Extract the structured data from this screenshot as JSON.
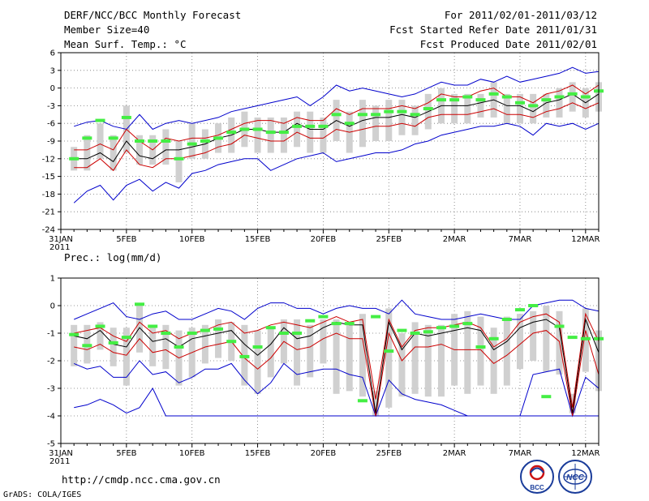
{
  "header": {
    "title": "DERF/NCC/BCC Monthly Forecast",
    "member_size": "Member Size=40",
    "panel1_label": "Mean Surf. Temp.: °C",
    "period": "For 2011/02/01-2011/03/12",
    "start_date": "Fcst Started Refer Date 2011/01/31",
    "produced_date": "Fcst Produced Date 2011/02/01"
  },
  "panel2_label": "Prec.: log(mm/d)",
  "footer": {
    "url": "http://cmdp.ncc.cma.gov.cn",
    "credit": "GrADS: COLA/IGES",
    "logo1_text": "BCC",
    "logo2_text": "NCC"
  },
  "colors": {
    "envelope": "#0000cc",
    "spread": "#cc0000",
    "mean": "#000000",
    "observed": "#44ee44",
    "box": "#d0d0d0"
  },
  "chart_data": [
    {
      "type": "line",
      "title": "Mean Surf. Temp.: °C",
      "x_tick_labels": [
        "31JAN\n2011",
        "5FEB",
        "10FEB",
        "15FEB",
        "20FEB",
        "25FEB",
        "2MAR",
        "7MAR",
        "12MAR"
      ],
      "x_tick_days": [
        0,
        5,
        10,
        15,
        20,
        25,
        30,
        35,
        40
      ],
      "xlim": [
        0,
        41
      ],
      "ylim": [
        -24,
        6
      ],
      "y_ticks": [
        -24,
        -21,
        -18,
        -15,
        -12,
        -9,
        -6,
        -3,
        0,
        3,
        6
      ],
      "series": [
        {
          "name": "max",
          "values": [
            -6.5,
            -5.8,
            -5.5,
            -6.5,
            -7,
            -4.5,
            -7,
            -6,
            -5.5,
            -6,
            -5.5,
            -5,
            -4,
            -3.5,
            -3,
            -2.5,
            -2,
            -1.5,
            -3,
            -1.5,
            0.5,
            -0.5,
            0,
            -0.5,
            -1,
            -1.5,
            -1,
            0,
            1,
            0.5,
            0.5,
            1.5,
            1,
            2,
            1,
            1.5,
            2,
            2.5,
            3.5,
            2.5,
            2.8
          ]
        },
        {
          "name": "upper",
          "values": [
            -10.5,
            -10.5,
            -9.5,
            -10.5,
            -7,
            -9,
            -10.5,
            -8.5,
            -9,
            -8.5,
            -8.5,
            -8,
            -7,
            -6,
            -5.5,
            -5.5,
            -6,
            -5,
            -5.5,
            -5.5,
            -3.5,
            -4.5,
            -3.5,
            -3.5,
            -3.5,
            -3,
            -3.5,
            -2.5,
            -1,
            -1.5,
            -1.5,
            -0.5,
            0,
            -1.5,
            -1.5,
            -2.5,
            -1,
            -0.5,
            0.5,
            -1,
            0.5
          ]
        },
        {
          "name": "mean",
          "values": [
            -12,
            -12,
            -11,
            -12.5,
            -9,
            -11.5,
            -12,
            -10.5,
            -10.5,
            -10,
            -9.5,
            -8.5,
            -8,
            -7,
            -7,
            -7.5,
            -7.5,
            -6,
            -7,
            -7,
            -5.5,
            -6.5,
            -5.5,
            -5,
            -5,
            -4.5,
            -5,
            -4,
            -3,
            -3,
            -3,
            -2.5,
            -2,
            -3,
            -3,
            -4,
            -2.5,
            -2,
            -1,
            -2.5,
            -1
          ]
        },
        {
          "name": "lower",
          "values": [
            -13.5,
            -13.5,
            -12,
            -14,
            -10.5,
            -13,
            -13.5,
            -12,
            -12,
            -11.5,
            -11,
            -10,
            -9.5,
            -8,
            -8.5,
            -9,
            -9,
            -7.5,
            -8.5,
            -8.5,
            -7,
            -7.5,
            -7,
            -6.5,
            -6.5,
            -6,
            -6.5,
            -5,
            -4.5,
            -4.5,
            -4.5,
            -4,
            -3.5,
            -4.5,
            -4.5,
            -5,
            -4,
            -3.5,
            -2.5,
            -3.5,
            -2.5
          ]
        },
        {
          "name": "min",
          "values": [
            -19.5,
            -17.5,
            -16.5,
            -19,
            -16.5,
            -15.5,
            -17.5,
            -16,
            -17,
            -14.5,
            -14,
            -13,
            -12.5,
            -12,
            -12,
            -14,
            -13,
            -12,
            -11.5,
            -11,
            -12.5,
            -12,
            -11.5,
            -11,
            -11,
            -10.5,
            -9.5,
            -9,
            -8,
            -7.5,
            -7,
            -6.5,
            -6.5,
            -6,
            -6.5,
            -8,
            -6,
            -6.5,
            -6,
            -7,
            -6
          ]
        },
        {
          "name": "box_top",
          "values": [
            -10,
            -8,
            -6,
            -8,
            -3,
            -8,
            -8,
            -7,
            -9,
            -6,
            -7,
            -6,
            -5,
            -4,
            -5,
            -5,
            -5,
            -4,
            -4,
            -5,
            -2,
            -4,
            -2,
            -3,
            -2,
            -2,
            -3,
            -1,
            0,
            -1,
            -1,
            -1,
            1,
            -1,
            -1,
            -1,
            -1,
            0,
            1,
            0,
            1
          ]
        },
        {
          "name": "box_bottom",
          "values": [
            -14,
            -14,
            -12,
            -14,
            -11,
            -13,
            -13,
            -13,
            -16,
            -12,
            -12,
            -11,
            -11,
            -10,
            -11,
            -11,
            -11,
            -10,
            -11,
            -11,
            -9,
            -11,
            -10,
            -9,
            -9,
            -8,
            -8,
            -7,
            -6,
            -6,
            -6,
            -5,
            -5,
            -6,
            -6,
            -6,
            -5,
            -5,
            -4,
            -5,
            -4
          ]
        },
        {
          "name": "observed",
          "values": [
            -12,
            -8.5,
            -5.5,
            -8.5,
            -5,
            -9,
            -9,
            -9,
            -12,
            -9.5,
            -9,
            -8.5,
            -7.5,
            -7,
            -7,
            -7.5,
            -7.5,
            -6.5,
            -6.5,
            -6.5,
            -4.5,
            -6,
            -4.5,
            -4.5,
            -4,
            -4,
            -4.5,
            -3.5,
            -2,
            -2,
            -1.5,
            -2,
            -1,
            -1.5,
            -2.5,
            -3,
            -2,
            -1.5,
            -1,
            -1.5,
            -0.5
          ]
        }
      ]
    },
    {
      "type": "line",
      "title": "Prec.: log(mm/d)",
      "x_tick_labels": [
        "31JAN\n2011",
        "5FEB",
        "10FEB",
        "15FEB",
        "20FEB",
        "25FEB",
        "2MAR",
        "7MAR",
        "12MAR"
      ],
      "x_tick_days": [
        0,
        5,
        10,
        15,
        20,
        25,
        30,
        35,
        40
      ],
      "xlim": [
        0,
        41
      ],
      "ylim": [
        -5,
        1
      ],
      "y_ticks": [
        -5,
        -4,
        -3,
        -2,
        -1,
        0,
        1
      ],
      "series": [
        {
          "name": "max",
          "values": [
            -0.5,
            -0.3,
            -0.1,
            0.1,
            -0.4,
            -0.5,
            -0.3,
            -0.2,
            -0.5,
            -0.5,
            -0.3,
            -0.1,
            -0.2,
            -0.5,
            -0.1,
            0.1,
            0.1,
            -0.1,
            -0.1,
            -0.3,
            -0.1,
            0,
            -0.1,
            -0.1,
            -0.3,
            0.2,
            -0.3,
            -0.4,
            -0.5,
            -0.5,
            -0.4,
            -0.3,
            -0.4,
            -0.5,
            -0.5,
            0,
            0.1,
            0.2,
            0.2,
            -0.1,
            -0.2
          ]
        },
        {
          "name": "upper",
          "values": [
            -1,
            -0.9,
            -0.8,
            -1.1,
            -1.3,
            -0.6,
            -1,
            -0.9,
            -1.2,
            -1,
            -0.9,
            -0.7,
            -0.6,
            -1,
            -0.9,
            -0.7,
            -0.6,
            -0.7,
            -0.8,
            -0.6,
            -0.4,
            -0.6,
            -0.5,
            -3.4,
            -0.5,
            -1.5,
            -0.9,
            -0.8,
            -0.8,
            -0.7,
            -0.6,
            -0.8,
            -1.5,
            -1.2,
            -0.6,
            -0.4,
            -0.3,
            -0.6,
            -3.7,
            -0.3,
            -1.3
          ]
        },
        {
          "name": "mean",
          "values": [
            -1.1,
            -1.2,
            -0.9,
            -1.4,
            -1.5,
            -0.8,
            -1.3,
            -1.2,
            -1.5,
            -1.2,
            -1.1,
            -1,
            -0.9,
            -1.4,
            -1.8,
            -1.4,
            -0.8,
            -1.2,
            -1.1,
            -0.8,
            -0.6,
            -0.7,
            -0.7,
            -3.9,
            -0.6,
            -1.6,
            -1,
            -1.1,
            -1,
            -0.9,
            -0.8,
            -0.9,
            -1.6,
            -1.3,
            -0.8,
            -0.6,
            -0.5,
            -0.8,
            -3.9,
            -0.5,
            -1.7
          ]
        },
        {
          "name": "lower",
          "values": [
            -1.5,
            -1.6,
            -1.4,
            -1.7,
            -1.8,
            -1.2,
            -1.7,
            -1.6,
            -1.9,
            -1.7,
            -1.5,
            -1.4,
            -1.3,
            -1.9,
            -2.3,
            -1.9,
            -1.3,
            -1.6,
            -1.5,
            -1.2,
            -1,
            -1.2,
            -1.2,
            -4,
            -1,
            -2,
            -1.5,
            -1.5,
            -1.4,
            -1.6,
            -1.6,
            -1.6,
            -2.1,
            -1.8,
            -1.4,
            -1,
            -0.9,
            -1.3,
            -4,
            -0.9,
            -2.5
          ]
        },
        {
          "name": "min",
          "values": [
            -2.1,
            -2.3,
            -2.2,
            -2.6,
            -2.6,
            -2,
            -2.5,
            -2.4,
            -2.8,
            -2.6,
            -2.3,
            -2.3,
            -2.1,
            -2.7,
            -3.2,
            -2.8,
            -2.1,
            -2.5,
            -2.4,
            -2.3,
            -2.3,
            -2.5,
            -2.6,
            -4,
            -2.7,
            -3.2,
            -3.4,
            -3.5,
            -3.6,
            -3.8,
            -4,
            -4,
            -4,
            -4,
            -4,
            -2.5,
            -2.4,
            -2.3,
            -4,
            -2.6,
            -3
          ]
        },
        {
          "name": "envelope_low",
          "values": [
            -3.7,
            -3.6,
            -3.4,
            -3.6,
            -3.9,
            -3.7,
            -3,
            -4,
            -4,
            -4,
            -4,
            -4,
            -4,
            -4,
            -4,
            -4,
            -4,
            -4,
            -4,
            -4,
            -4,
            -4,
            -4,
            -4,
            -4,
            -4,
            -4,
            -4,
            -4,
            -4,
            -4,
            -4,
            -4,
            -4,
            -4,
            -4,
            -4,
            -4,
            -4,
            -4,
            -4
          ]
        },
        {
          "name": "box_top",
          "values": [
            -0.7,
            -0.7,
            -0.6,
            -0.8,
            -0.8,
            0.1,
            -0.8,
            -0.7,
            -0.9,
            -0.8,
            -0.7,
            -0.5,
            -0.6,
            -0.7,
            -0.9,
            -0.8,
            -0.5,
            -0.5,
            -0.7,
            -0.5,
            -0.5,
            -0.7,
            -0.3,
            -3.1,
            -0.1,
            -1,
            -0.6,
            -0.7,
            -0.7,
            -0.3,
            -0.2,
            -0.4,
            -0.8,
            -0.4,
            -0.3,
            -0.2,
            0,
            -0.2,
            -3.2,
            -0.1,
            -0.9
          ]
        },
        {
          "name": "box_bottom",
          "values": [
            -2.2,
            -2.1,
            -1.6,
            -2.2,
            -2.9,
            -1.7,
            -2.2,
            -2.3,
            -2.9,
            -2.6,
            -2.1,
            -1.9,
            -2,
            -2.9,
            -3.2,
            -2.6,
            -2.1,
            -2.9,
            -2.6,
            -2.1,
            -3.2,
            -3.1,
            -3.3,
            -4,
            -3.7,
            -3.3,
            -3.2,
            -3.3,
            -3.3,
            -2.9,
            -3.2,
            -2.9,
            -3.2,
            -2.9,
            -2.3,
            -2,
            -2.4,
            -2.5,
            -3.9,
            -2.4,
            -3.1
          ]
        },
        {
          "name": "observed",
          "values": [
            -1.05,
            -1.45,
            -0.75,
            -1.35,
            -1.15,
            0.05,
            -0.75,
            -1,
            -1.5,
            -1,
            -0.9,
            -0.85,
            -1.3,
            -1.85,
            -1.5,
            -0.8,
            -1,
            -1,
            -0.55,
            -0.4,
            -0.65,
            -0.65,
            -3.45,
            -0.4,
            -1.65,
            -0.9,
            -1,
            -0.95,
            -0.8,
            -0.75,
            -0.65,
            -1.5,
            -1.2,
            -0.5,
            -0.15,
            0,
            -3.3,
            -0.75,
            -1.15,
            -1.2,
            -1.2
          ]
        }
      ]
    }
  ]
}
